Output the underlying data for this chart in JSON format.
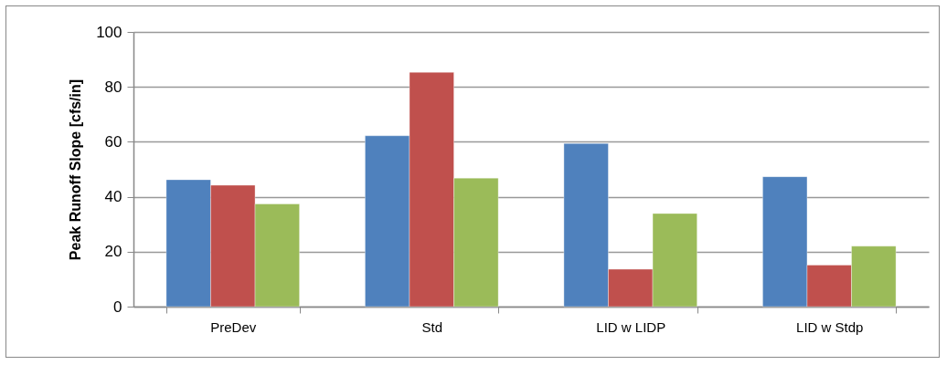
{
  "chart_data": {
    "type": "bar",
    "ylabel": "Peak Runoff Slope [cfs/in]",
    "categories": [
      "PreDev",
      "Std",
      "LID w LIDP",
      "LID w Stdp"
    ],
    "series": [
      {
        "color": "#4f81bd",
        "values": [
          46.2,
          62.2,
          59.4,
          47.3
        ]
      },
      {
        "color": "#c0504d",
        "values": [
          44.2,
          85.3,
          13.6,
          15.1
        ]
      },
      {
        "color": "#9bbb59",
        "values": [
          37.4,
          46.8,
          33.9,
          22.0
        ]
      }
    ],
    "ylim": [
      0,
      100
    ],
    "yticks": [
      0,
      20,
      40,
      60,
      80,
      100
    ],
    "grid": "y",
    "legend": false
  }
}
